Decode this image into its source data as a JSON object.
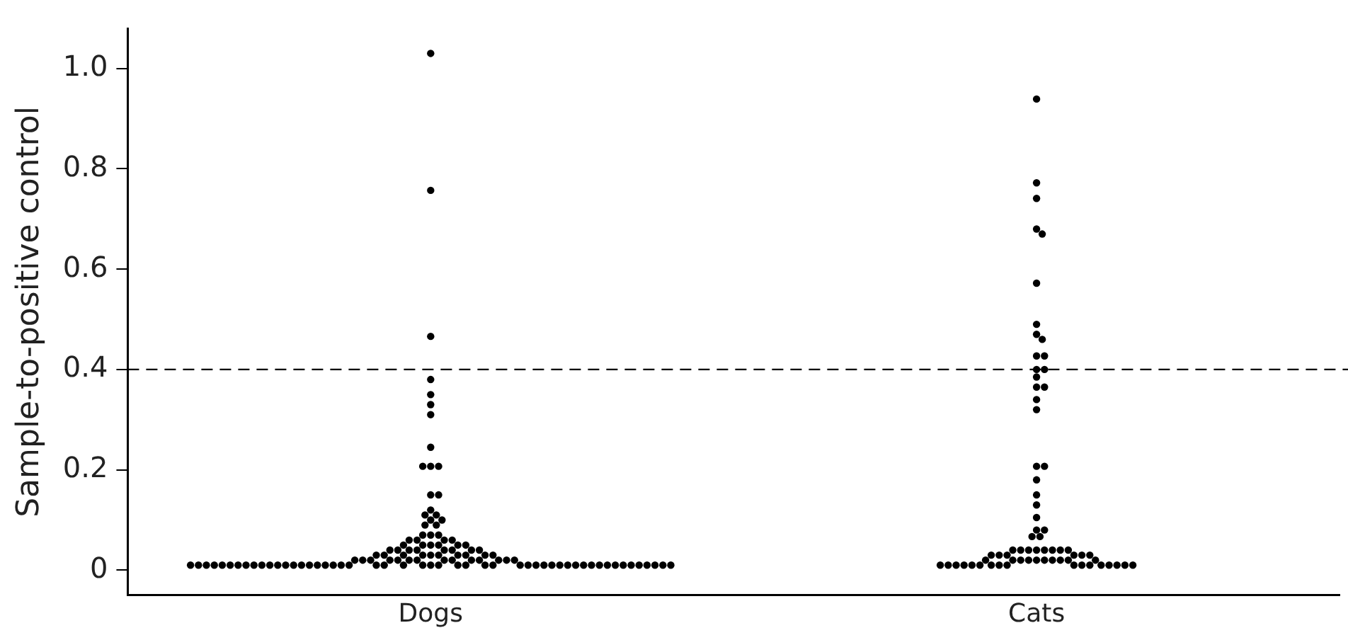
{
  "chart_data": {
    "type": "scatter",
    "ylabel": "Sample-to-positive control",
    "categories": [
      "Dogs",
      "Cats"
    ],
    "series": [
      {
        "color": "#000000",
        "x": [
          "Dogs",
          "Dogs",
          "Dogs",
          "Dogs",
          "Dogs",
          "Dogs",
          "Dogs",
          "Dogs",
          "Dogs",
          "Dogs",
          "Dogs",
          "Dogs",
          "Dogs",
          "Dogs",
          "Dogs",
          "Dogs",
          "Dogs",
          "Dogs",
          "Dogs",
          "Dogs",
          "Dogs",
          "Dogs",
          "Dogs",
          "Dogs",
          "Dogs",
          "Dogs",
          "Dogs",
          "Dogs",
          "Dogs",
          "Dogs",
          "Dogs",
          "Dogs",
          "Dogs",
          "Dogs",
          "Dogs",
          "Dogs",
          "Dogs",
          "Dogs",
          "Dogs",
          "Dogs",
          "Dogs",
          "Dogs",
          "Dogs",
          "Dogs",
          "Dogs",
          "Dogs",
          "Dogs",
          "Dogs",
          "Dogs",
          "Dogs",
          "Dogs",
          "Dogs",
          "Dogs",
          "Dogs",
          "Dogs",
          "Dogs",
          "Dogs",
          "Dogs",
          "Dogs",
          "Dogs",
          "Dogs",
          "Dogs",
          "Dogs",
          "Dogs",
          "Dogs",
          "Dogs",
          "Dogs",
          "Dogs",
          "Dogs",
          "Dogs",
          "Dogs",
          "Dogs",
          "Dogs",
          "Dogs",
          "Dogs",
          "Dogs",
          "Dogs",
          "Dogs",
          "Dogs",
          "Dogs",
          "Dogs",
          "Dogs",
          "Dogs",
          "Dogs",
          "Dogs",
          "Dogs",
          "Dogs",
          "Dogs",
          "Dogs",
          "Dogs",
          "Dogs",
          "Dogs",
          "Dogs",
          "Dogs",
          "Dogs",
          "Dogs",
          "Dogs",
          "Dogs",
          "Dogs",
          "Dogs",
          "Dogs",
          "Dogs",
          "Dogs",
          "Dogs",
          "Dogs",
          "Dogs",
          "Dogs",
          "Dogs",
          "Dogs",
          "Dogs",
          "Dogs",
          "Dogs",
          "Dogs",
          "Dogs",
          "Dogs",
          "Dogs"
        ],
        "values": [
          1.03,
          0.757,
          0.466,
          0.38,
          0.35,
          0.33,
          0.31,
          0.245,
          0.207,
          0.207,
          0.207,
          0.15,
          0.15,
          0.12,
          0.11,
          0.11,
          0.1,
          0.1,
          0.09,
          0.09,
          0.07,
          0.07,
          0.07,
          0.06,
          0.06,
          0.06,
          0.06,
          0.05,
          0.05,
          0.05,
          0.05,
          0.05,
          0.05,
          0.04,
          0.04,
          0.04,
          0.04,
          0.04,
          0.04,
          0.04,
          0.04,
          0.03,
          0.03,
          0.03,
          0.03,
          0.03,
          0.03,
          0.03,
          0.03,
          0.03,
          0.03,
          0.02,
          0.02,
          0.02,
          0.02,
          0.02,
          0.02,
          0.02,
          0.02,
          0.02,
          0.02,
          0.02,
          0.02,
          0.02,
          0.02,
          0.01,
          0.01,
          0.01,
          0.01,
          0.01,
          0.01,
          0.01,
          0.01,
          0.01,
          0.01,
          0.01,
          0.01,
          0.01,
          0.01,
          0.01,
          0.01,
          0.01,
          0.01,
          0.01,
          0.01,
          0.01,
          0.01,
          0.01,
          0.01,
          0.01,
          0.01,
          0.01,
          0.01,
          0.01,
          0.01,
          0.01,
          0.01,
          0.01,
          0.01,
          0.01,
          0.01,
          0.01,
          0.01,
          0.01,
          0.01,
          0.01,
          0.01,
          0.01,
          0.01,
          0.01,
          0.01,
          0.01,
          0.01,
          0.01,
          0.01,
          0.01
        ]
      },
      {
        "color": "#000000",
        "x": [
          "Cats",
          "Cats",
          "Cats",
          "Cats",
          "Cats",
          "Cats",
          "Cats",
          "Cats",
          "Cats",
          "Cats",
          "Cats",
          "Cats",
          "Cats",
          "Cats",
          "Cats",
          "Cats",
          "Cats",
          "Cats",
          "Cats",
          "Cats",
          "Cats",
          "Cats",
          "Cats",
          "Cats",
          "Cats",
          "Cats",
          "Cats",
          "Cats",
          "Cats",
          "Cats",
          "Cats",
          "Cats",
          "Cats",
          "Cats",
          "Cats",
          "Cats",
          "Cats",
          "Cats",
          "Cats",
          "Cats",
          "Cats",
          "Cats",
          "Cats",
          "Cats",
          "Cats",
          "Cats",
          "Cats",
          "Cats",
          "Cats",
          "Cats",
          "Cats",
          "Cats",
          "Cats",
          "Cats",
          "Cats",
          "Cats",
          "Cats",
          "Cats",
          "Cats",
          "Cats",
          "Cats",
          "Cats",
          "Cats",
          "Cats",
          "Cats",
          "Cats",
          "Cats",
          "Cats",
          "Cats"
        ],
        "values": [
          0.939,
          0.772,
          0.741,
          0.68,
          0.67,
          0.572,
          0.49,
          0.47,
          0.46,
          0.427,
          0.427,
          0.4,
          0.4,
          0.385,
          0.365,
          0.365,
          0.34,
          0.32,
          0.207,
          0.207,
          0.18,
          0.15,
          0.13,
          0.105,
          0.08,
          0.08,
          0.067,
          0.067,
          0.04,
          0.04,
          0.04,
          0.04,
          0.04,
          0.04,
          0.04,
          0.04,
          0.03,
          0.03,
          0.03,
          0.03,
          0.03,
          0.03,
          0.02,
          0.02,
          0.02,
          0.02,
          0.02,
          0.02,
          0.02,
          0.02,
          0.02,
          0.02,
          0.01,
          0.01,
          0.01,
          0.01,
          0.01,
          0.01,
          0.01,
          0.01,
          0.01,
          0.01,
          0.01,
          0.01,
          0.01,
          0.01,
          0.01,
          0.01,
          0.01
        ]
      }
    ],
    "ylim": [
      -0.05,
      1.08
    ],
    "yticks": [
      0,
      0.2,
      0.4,
      0.6,
      0.8,
      {
        "value": 1,
        "label": "1.0"
      }
    ],
    "ref_lines": [
      {
        "axis": "y",
        "value": 0.4,
        "line_style": "dashed",
        "color": "#000000"
      }
    ],
    "grid": false,
    "legend": false,
    "marker": "circle"
  }
}
